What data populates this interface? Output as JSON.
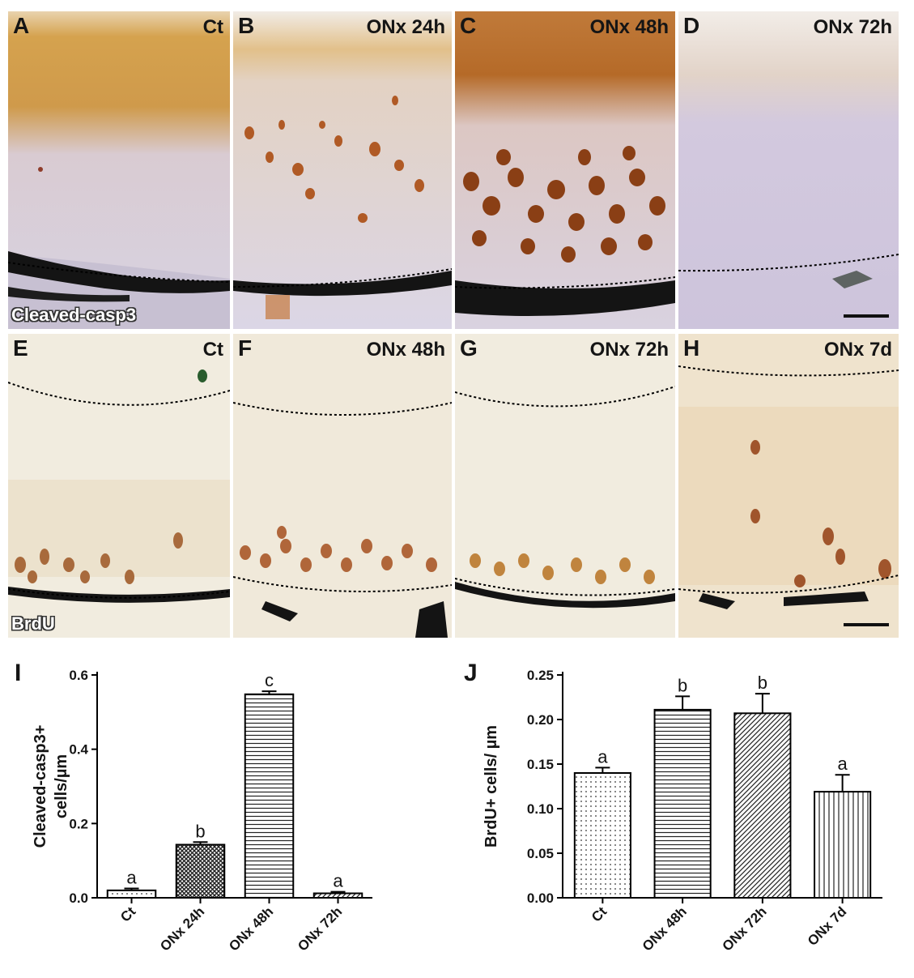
{
  "figure": {
    "panels_top": [
      {
        "label": "A",
        "condition": "Ct",
        "stain": "Cleaved-casp3",
        "x": 10
      },
      {
        "label": "B",
        "condition": "ONx 24h",
        "stain": "",
        "x": 288
      },
      {
        "label": "C",
        "condition": "ONx 48h",
        "stain": "",
        "x": 562
      },
      {
        "label": "D",
        "condition": "ONx 72h",
        "stain": "",
        "x": 838
      }
    ],
    "panels_bottom": [
      {
        "label": "E",
        "condition": "Ct",
        "stain": "BrdU"
      },
      {
        "label": "F",
        "condition": "ONx 48h",
        "stain": ""
      },
      {
        "label": "G",
        "condition": "ONx 72h",
        "stain": ""
      },
      {
        "label": "H",
        "condition": "ONx 7d",
        "stain": ""
      }
    ]
  },
  "colors": {
    "tissue": "#ddd6e6",
    "brown_stain": "#c98a38",
    "dark_brown": "#8a3f15",
    "brdu_bg": "#f1ecdf",
    "melanin": "#141414"
  },
  "chart_data": [
    {
      "panel_label": "I",
      "type": "bar",
      "categories": [
        "Ct",
        "ONx 24h",
        "ONx 48h",
        "ONx 72h"
      ],
      "values": [
        0.02,
        0.143,
        0.548,
        0.012
      ],
      "errors": [
        0.005,
        0.007,
        0.008,
        0.004
      ],
      "letters": [
        "a",
        "b",
        "c",
        "a"
      ],
      "ylabel_line1": "Cleaved-casp3+",
      "ylabel_line2": "cells/µm",
      "ylim": [
        0,
        0.6
      ],
      "yticks": [
        "0.0",
        "0.2",
        "0.4",
        "0.6"
      ],
      "patterns": [
        "dots",
        "crosshatch",
        "horizontal",
        "diagonal"
      ]
    },
    {
      "panel_label": "J",
      "type": "bar",
      "categories": [
        "Ct",
        "ONx 48h",
        "ONx 72h",
        "ONx 7d"
      ],
      "values": [
        0.14,
        0.211,
        0.207,
        0.119
      ],
      "errors": [
        0.006,
        0.015,
        0.022,
        0.019
      ],
      "letters": [
        "a",
        "b",
        "b",
        "a"
      ],
      "ylabel_line1": "BrdU+ cells/ µm",
      "ylim": [
        0,
        0.25
      ],
      "yticks": [
        "0.00",
        "0.05",
        "0.10",
        "0.15",
        "0.20",
        "0.25"
      ],
      "patterns": [
        "dots",
        "horizontal",
        "diagonal",
        "vertical"
      ]
    }
  ]
}
